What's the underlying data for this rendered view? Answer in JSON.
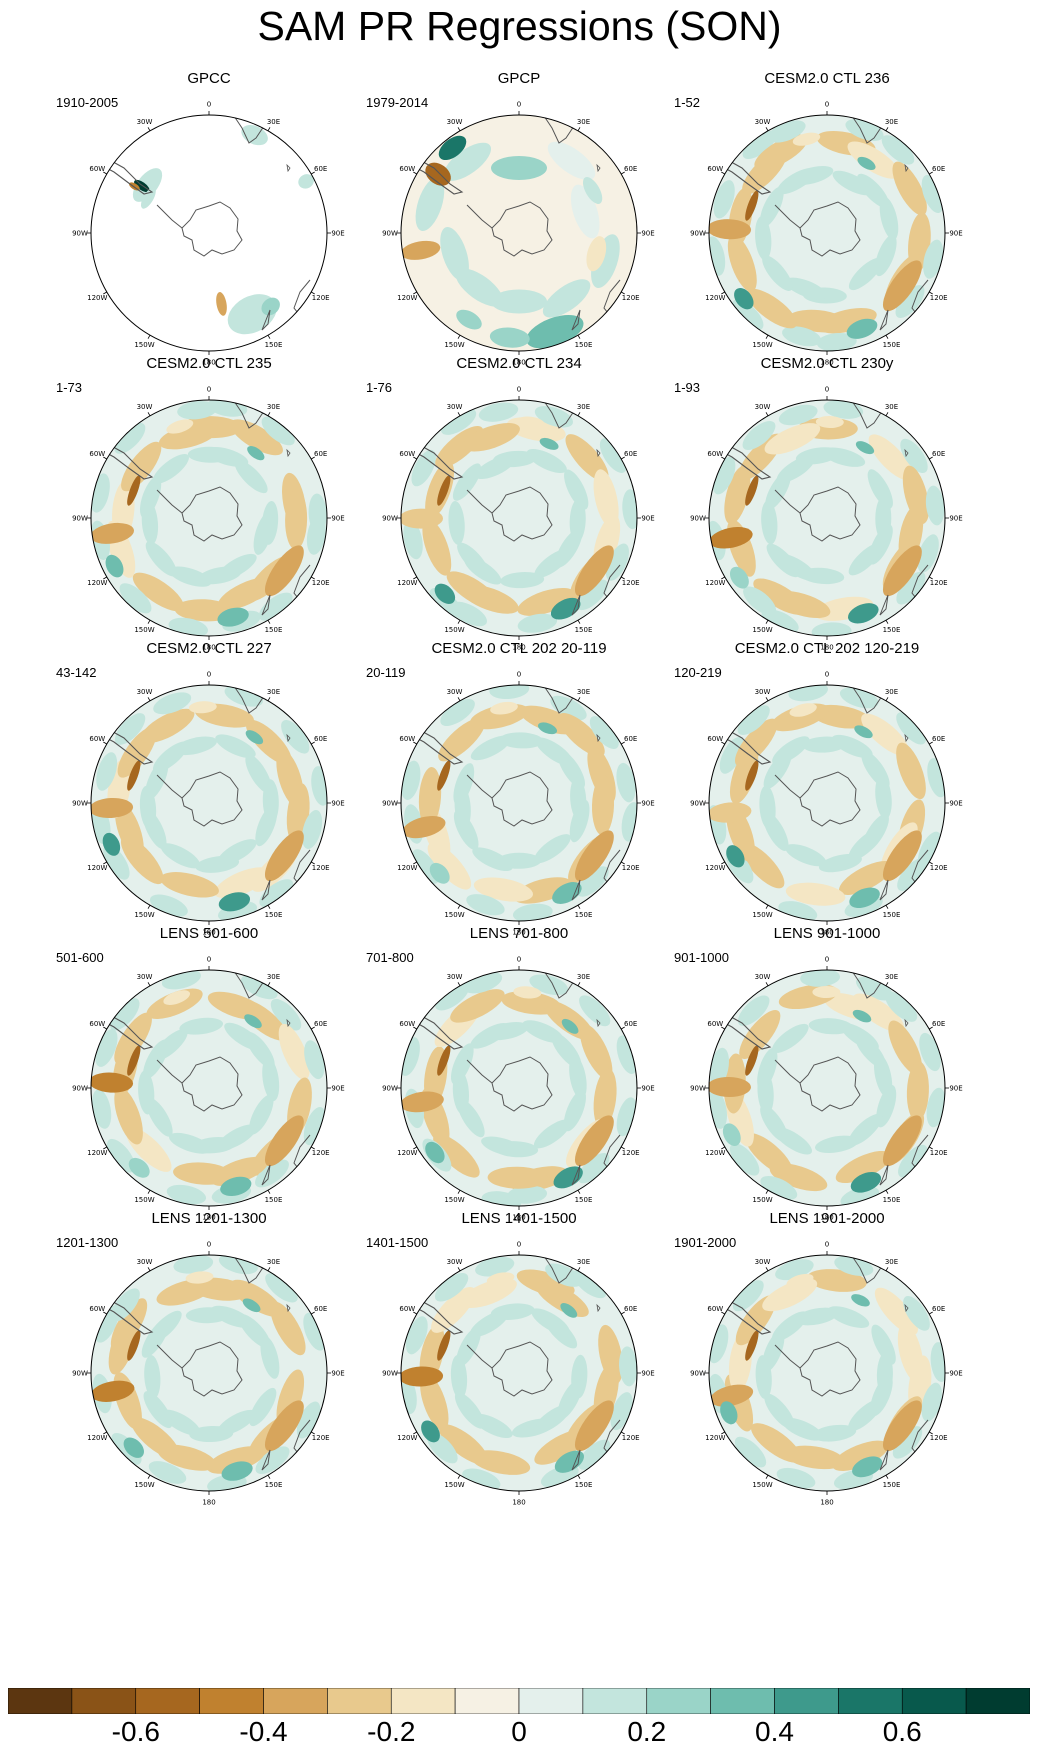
{
  "title": "SAM PR Regressions (SON)",
  "lon_labels": [
    "0",
    "30E",
    "60E",
    "90E",
    "120E",
    "150E",
    "180",
    "150W",
    "120W",
    "90W",
    "60W",
    "30W"
  ],
  "panels": [
    {
      "title": "GPCC",
      "subtitle": "1910-2005",
      "pattern": "gpcc"
    },
    {
      "title": "GPCP",
      "subtitle": "1979-2014",
      "pattern": "gpcp"
    },
    {
      "title": "CESM2.0 CTL 236",
      "subtitle": "1-52",
      "pattern": "model"
    },
    {
      "title": "CESM2.0 CTL 235",
      "subtitle": "1-73",
      "pattern": "model"
    },
    {
      "title": "CESM2.0 CTL 234",
      "subtitle": "1-76",
      "pattern": "model"
    },
    {
      "title": "CESM2.0 CTL 230y",
      "subtitle": "1-93",
      "pattern": "model"
    },
    {
      "title": "CESM2.0 CTL 227",
      "subtitle": "43-142",
      "pattern": "model"
    },
    {
      "title": "CESM2.0 CTL 202 20-119",
      "subtitle": "20-119",
      "pattern": "model"
    },
    {
      "title": "CESM2.0 CTL 202 120-219",
      "subtitle": "120-219",
      "pattern": "model"
    },
    {
      "title": "LENS 501-600",
      "subtitle": "501-600",
      "pattern": "model"
    },
    {
      "title": "LENS 701-800",
      "subtitle": "701-800",
      "pattern": "model"
    },
    {
      "title": "LENS 901-1000",
      "subtitle": "901-1000",
      "pattern": "model"
    },
    {
      "title": "LENS 1201-1300",
      "subtitle": "1201-1300",
      "pattern": "model"
    },
    {
      "title": "LENS 1401-1500",
      "subtitle": "1401-1500",
      "pattern": "model"
    },
    {
      "title": "LENS 1901-2000",
      "subtitle": "1901-2000",
      "pattern": "model"
    }
  ],
  "chart_data": {
    "type": "heatmap",
    "title": "SAM PR Regressions (SON)",
    "projection": "south polar stereographic",
    "colorbar": {
      "levels": [
        -0.7,
        -0.6,
        -0.5,
        -0.4,
        -0.3,
        -0.2,
        -0.1,
        0,
        0.1,
        0.2,
        0.3,
        0.4,
        0.5,
        0.6,
        0.7
      ],
      "colors": [
        "#5c3610",
        "#8a5317",
        "#a6671f",
        "#c0812f",
        "#d7a55c",
        "#e8c98d",
        "#f4e6c4",
        "#f6f1e4",
        "#e4f0ec",
        "#c3e5dd",
        "#9ad4c8",
        "#6ebdae",
        "#3e9a8c",
        "#1a7668",
        "#08594c",
        "#003c30"
      ],
      "tick_labels": [
        "-0.6",
        "-0.4",
        "-0.2",
        "0",
        "0.2",
        "0.4",
        "0.6"
      ],
      "tick_values": [
        -0.6,
        -0.4,
        -0.2,
        0,
        0.2,
        0.4,
        0.6
      ]
    }
  }
}
